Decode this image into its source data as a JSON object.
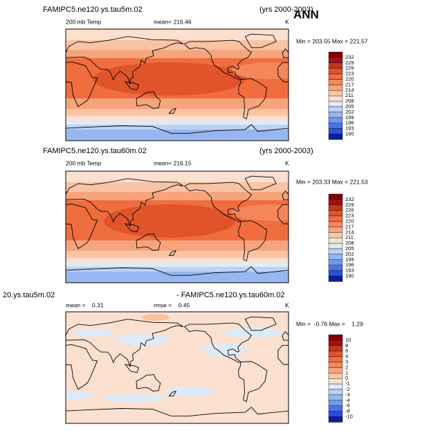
{
  "header": {
    "season": "ANN"
  },
  "panels": [
    {
      "title": "FAMIPC5.ne120.ys.tau5m.02",
      "years": "(yrs 2000-2003)",
      "field": "200 mb Temp",
      "mean": "mean= 216.46",
      "units": "K",
      "minmax": "Min = 203.55 Max = 221.57",
      "colorbar": [
        232,
        229,
        226,
        223,
        220,
        217,
        214,
        211,
        208,
        205,
        202,
        199,
        196,
        193,
        190
      ]
    },
    {
      "title": "FAMIPC5.ne120.ys.tau60m.02",
      "years": "(yrs 2000-2003)",
      "field": "200 mb Temp",
      "mean": "mean= 216.15",
      "units": "K",
      "minmax": "Min = 203.33 Max = 221.53",
      "colorbar": [
        232,
        229,
        226,
        223,
        220,
        217,
        214,
        211,
        208,
        205,
        202,
        199,
        196,
        193,
        190
      ]
    },
    {
      "title": "20.ys.tau5m.02",
      "years": "- FAMIPC5.ne120.ys.tau60m.02",
      "mean": "mean =    0.31",
      "rmse": "rmse =    0.45",
      "units": "K",
      "minmax": "Min =  -0.76 Max =    1.29",
      "colorbar": [
        10,
        8,
        6,
        4,
        3,
        2,
        1,
        0,
        -1,
        -2,
        -3,
        -4,
        -6,
        -8,
        -10
      ]
    }
  ],
  "colorbar_colors": [
    "#7f0000",
    "#a50f15",
    "#c8351e",
    "#e0532b",
    "#ef6d3f",
    "#f4875a",
    "#f6a47c",
    "#f9c3a4",
    "#fbe0cf",
    "#ddeaf8",
    "#bcd2f5",
    "#98b6f0",
    "#7397ec",
    "#4d74e5",
    "#2a4fd9",
    "#0a1f9c"
  ]
}
